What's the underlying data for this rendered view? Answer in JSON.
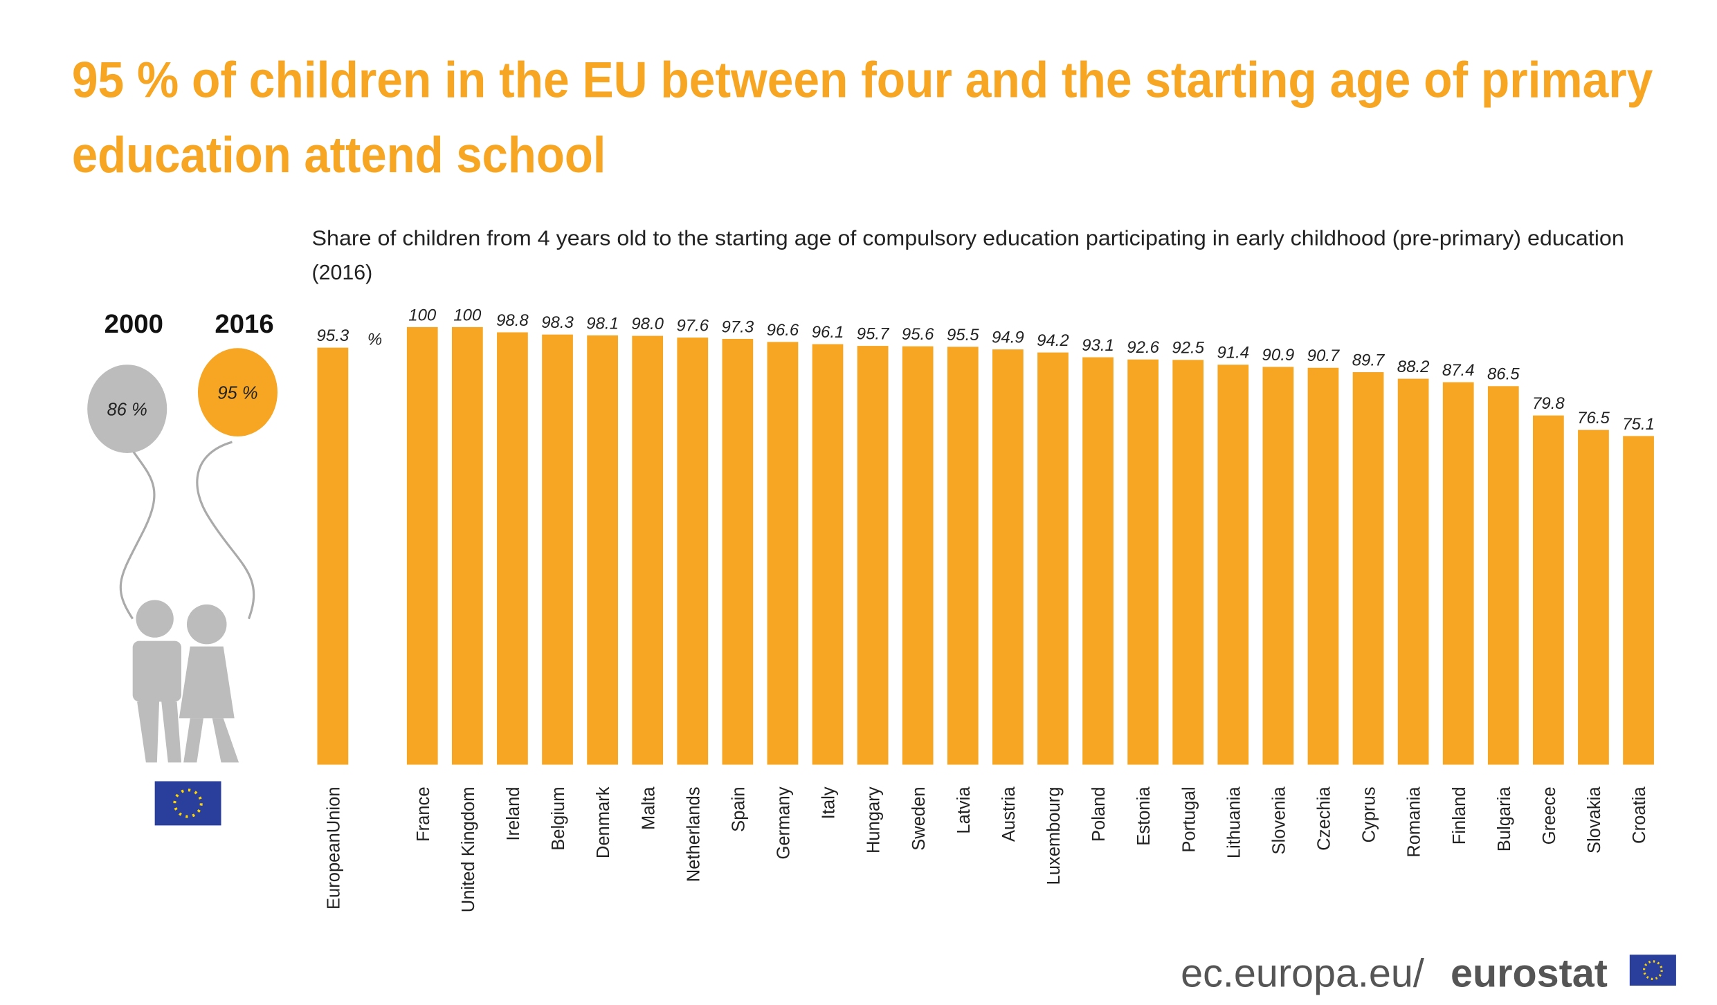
{
  "chart_data": {
    "type": "bar",
    "title": [
      "95 % of children in the EU between four and the starting age of primary",
      "education attend school"
    ],
    "subtitle": [
      "Share of children from 4 years old to the starting age of compulsory education participating in early childhood (pre-primary) education",
      "(2016)"
    ],
    "unit": "%",
    "categories": [
      "EuropeanUnion",
      "France",
      "United Kingdom",
      "Ireland",
      "Belgium",
      "Denmark",
      "Malta",
      "Netherlands",
      "Spain",
      "Germany",
      "Italy",
      "Hungary",
      "Sweden",
      "Latvia",
      "Austria",
      "Luxembourg",
      "Poland",
      "Estonia",
      "Portugal",
      "Lithuania",
      "Slovenia",
      "Czechia",
      "Cyprus",
      "Romania",
      "Finland",
      "Bulgaria",
      "Greece",
      "Slovakia",
      "Croatia"
    ],
    "values": [
      95.3,
      100,
      100,
      98.8,
      98.3,
      98.1,
      98.0,
      97.6,
      97.3,
      96.6,
      96.1,
      95.7,
      95.6,
      95.5,
      94.9,
      94.2,
      93.1,
      92.6,
      92.5,
      91.4,
      90.9,
      90.7,
      89.7,
      88.2,
      87.4,
      86.5,
      79.8,
      76.5,
      75.1
    ],
    "value_labels": [
      "95.3",
      "100",
      "100",
      "98.8",
      "98.3",
      "98.1",
      "98.0",
      "97.6",
      "97.3",
      "96.6",
      "96.1",
      "95.7",
      "95.6",
      "95.5",
      "94.9",
      "94.2",
      "93.1",
      "92.6",
      "92.5",
      "91.4",
      "90.9",
      "90.7",
      "89.7",
      "88.2",
      "87.4",
      "86.5",
      "79.8",
      "76.5",
      "75.1"
    ],
    "color": "#f6a623",
    "ylim": [
      0,
      100
    ],
    "grid": false,
    "balloons": [
      {
        "year": "2000",
        "label": "86 %",
        "color": "#bcbcbc"
      },
      {
        "year": "2016",
        "label": "95 %",
        "color": "#f6a623"
      }
    ],
    "source": [
      "ec.europa.eu/",
      "eurostat"
    ]
  }
}
